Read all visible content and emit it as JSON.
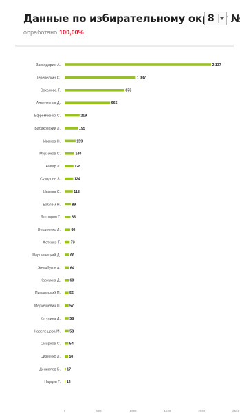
{
  "header": {
    "title": "Данные по избирательному округу №",
    "district": "8",
    "processed_label": "обработано",
    "processed_value": "100,00%"
  },
  "colors": {
    "bar": "#99c21f",
    "accent": "#d11a2a"
  },
  "chart_data": {
    "type": "bar",
    "orientation": "horizontal",
    "categories": [
      "Заколдарин А.",
      "Перепелкин С.",
      "Соколова Т.",
      "Алсеитенко Д.",
      "Ефремченко С.",
      "Бабаковский Л.",
      "Иванов Н.",
      "Мурзинов С.",
      "Айвар Л.",
      "Суходоев З.",
      "Иванов С.",
      "Баблем Н.",
      "Досоврин Г.",
      "Вердеенко Л.",
      "Фетенко Т.",
      "Шершенецкий Д.",
      "Желябугов А.",
      "Харчукна Д.",
      "Пижанецкий П.",
      "Меркешевич П.",
      "Кетулина Д.",
      "Кавелещова М.",
      "Смирнов С.",
      "Сизкенко Л.",
      "Дениалов Б.",
      "Нарцев Г."
    ],
    "values": [
      2137,
      1037,
      873,
      665,
      219,
      195,
      159,
      140,
      128,
      124,
      118,
      89,
      85,
      80,
      73,
      66,
      64,
      60,
      56,
      57,
      58,
      58,
      54,
      50,
      17,
      12
    ],
    "value_labels": [
      "2 137",
      "1 037",
      "873",
      "665",
      "219",
      "195",
      "159",
      "140",
      "128",
      "124",
      "118",
      "89",
      "85",
      "80",
      "73",
      "66",
      "64",
      "60",
      "56",
      "57",
      "58",
      "58",
      "54",
      "50",
      "17",
      "12"
    ],
    "xlim": [
      0,
      2500
    ],
    "x_ticks": [
      0,
      500,
      1000,
      1500,
      2000,
      2500
    ],
    "x_tick_labels": [
      "0",
      "500",
      "1000",
      "1500",
      "2000",
      "2500"
    ],
    "grid": false,
    "legend": "none"
  }
}
